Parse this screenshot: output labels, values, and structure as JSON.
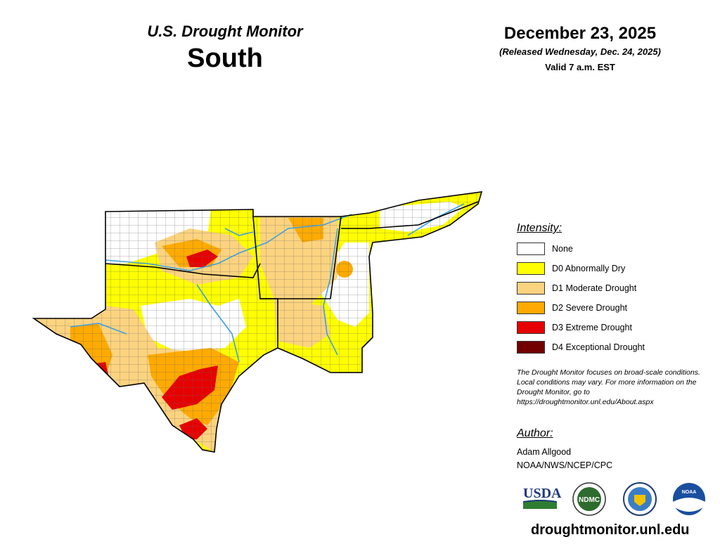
{
  "header": {
    "title": "U.S. Drought Monitor",
    "region": "South",
    "date": "December 23, 2025",
    "released": "(Released Wednesday, Dec. 24, 2025)",
    "valid": "Valid 7 a.m. EST"
  },
  "legend": {
    "title": "Intensity:",
    "items": [
      {
        "label": "None",
        "color": "#ffffff"
      },
      {
        "label": "D0 Abnormally Dry",
        "color": "#ffff00"
      },
      {
        "label": "D1 Moderate Drought",
        "color": "#fcd37f"
      },
      {
        "label": "D2 Severe Drought",
        "color": "#ffaa00"
      },
      {
        "label": "D3 Extreme Drought",
        "color": "#e60000"
      },
      {
        "label": "D4 Exceptional Drought",
        "color": "#730000"
      }
    ]
  },
  "note": "The Drought Monitor focuses on broad-scale conditions. Local conditions may vary. For more information on the Drought Monitor, go to https://droughtmonitor.unl.edu/About.aspx",
  "author": {
    "title": "Author:",
    "name": "Adam Allgood",
    "org": "NOAA/NWS/NCEP/CPC"
  },
  "logos": {
    "usda": "USDA",
    "ndmc": "NDMC",
    "noaa": "NOAA"
  },
  "website": "droughtmonitor.unl.edu",
  "colors": {
    "water": "#3fa0e0",
    "county_line": "#555555",
    "state_line": "#000000"
  }
}
